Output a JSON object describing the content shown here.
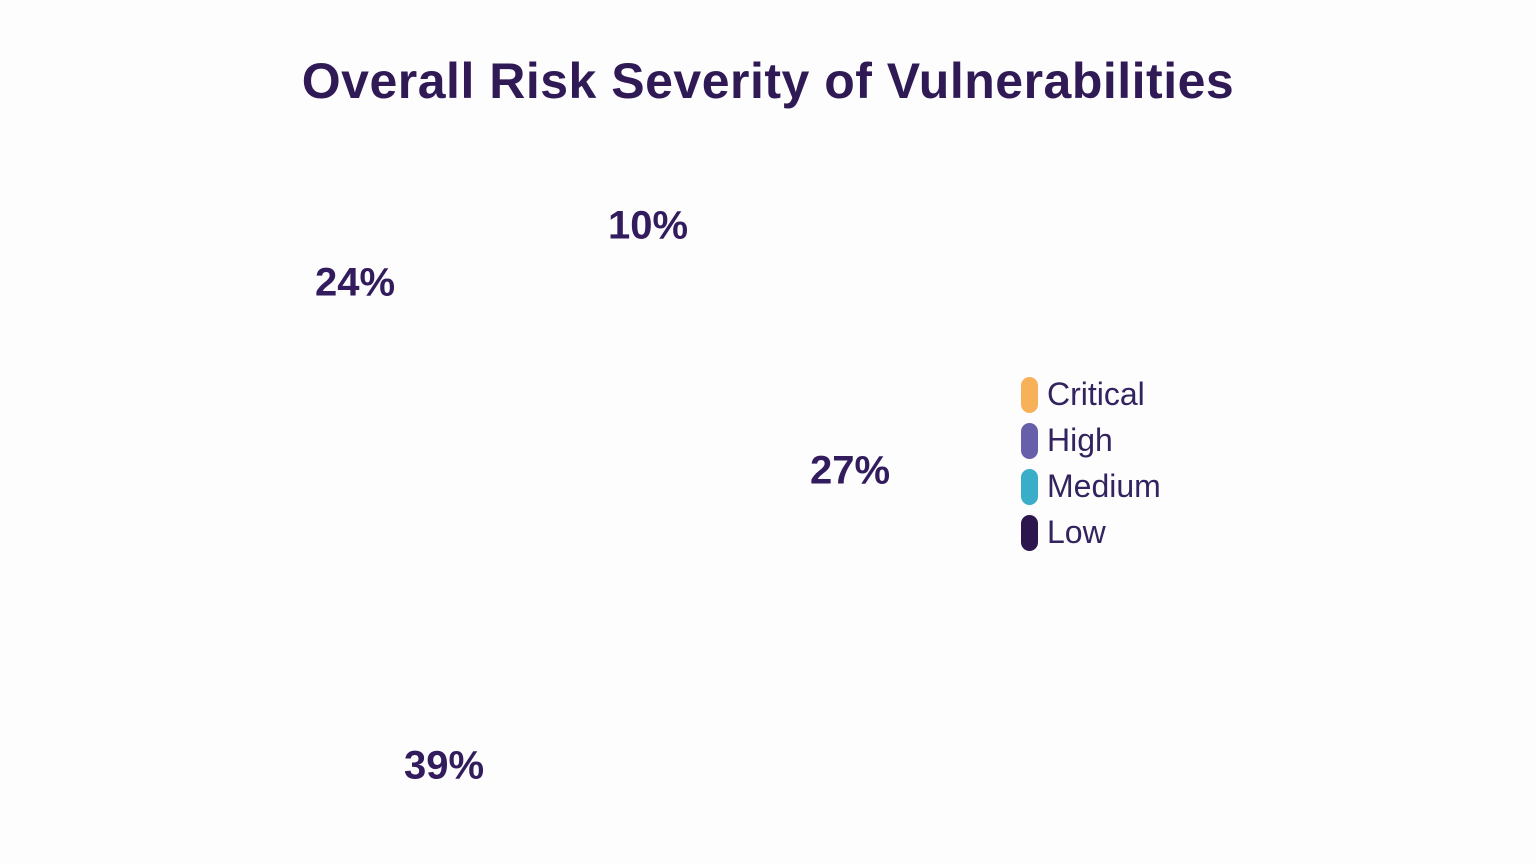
{
  "title": "Overall Risk Severity of Vulnerabilities",
  "colors": {
    "background": "#fdfdfd",
    "title_text": "#2f1a56",
    "data_label_text": "#321c5d",
    "legend_text": "#33235e",
    "critical": "#f6b159",
    "high": "#675fa9",
    "medium": "#3aaec8",
    "low": "#2c164d"
  },
  "chart_data": {
    "type": "pie",
    "title": "Overall Risk Severity of Vulnerabilities",
    "labels": [
      "Critical",
      "High",
      "Medium",
      "Low"
    ],
    "values": [
      10,
      27,
      39,
      24
    ],
    "unit": "%",
    "data_labels": [
      "10%",
      "27%",
      "39%",
      "24%"
    ],
    "series_colors": [
      "#f6b159",
      "#675fa9",
      "#3aaec8",
      "#2c164d"
    ],
    "legend_position": "right",
    "pie_slices_visible_in_frame": false
  },
  "percent_labels": [
    {
      "text": "10%",
      "category": "Critical"
    },
    {
      "text": "24%",
      "category": "Low"
    },
    {
      "text": "27%",
      "category": "High"
    },
    {
      "text": "39%",
      "category": "Medium"
    }
  ],
  "legend": {
    "items": [
      {
        "label": "Critical",
        "color": "#f6b159"
      },
      {
        "label": "High",
        "color": "#675fa9"
      },
      {
        "label": "Medium",
        "color": "#3aaec8"
      },
      {
        "label": "Low",
        "color": "#2c164d"
      }
    ]
  }
}
